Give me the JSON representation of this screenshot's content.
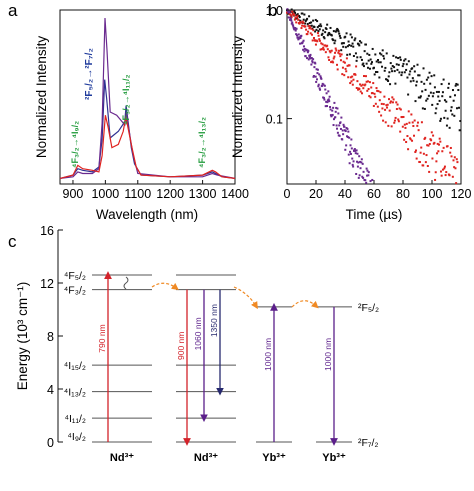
{
  "colors": {
    "axis": "#111111",
    "series_blue": "#2e3192",
    "series_purple": "#6a2a8f",
    "series_red": "#e0231f",
    "series_black": "#111111",
    "annot_blue": "#1f3b9c",
    "annot_green": "#1f9a3a",
    "arrow_red": "#d3222a",
    "arrow_purple": "#5b1f8a",
    "arrow_navy": "#27296e",
    "arrow_orange": "#f08a24",
    "level_line": "#555555"
  },
  "panel_labels": {
    "a": "a",
    "b": "b",
    "c": "c"
  },
  "chart_data": [
    {
      "panel": "a",
      "type": "line",
      "xlabel": "Wavelength (nm)",
      "ylabel": "Normalized Intensity",
      "xlim": [
        860,
        1400
      ],
      "xticks": [
        "900",
        "1000",
        "1100",
        "1200",
        "1300",
        "1400"
      ],
      "series": [
        {
          "color_key": "series_blue",
          "points": [
            [
              860,
              0.01
            ],
            [
              900,
              0.03
            ],
            [
              915,
              0.07
            ],
            [
              930,
              0.06
            ],
            [
              960,
              0.05
            ],
            [
              980,
              0.08
            ],
            [
              990,
              0.25
            ],
            [
              998,
              0.62
            ],
            [
              1004,
              0.5
            ],
            [
              1015,
              0.26
            ],
            [
              1040,
              0.3
            ],
            [
              1060,
              0.36
            ],
            [
              1064,
              0.46
            ],
            [
              1070,
              0.36
            ],
            [
              1080,
              0.2
            ],
            [
              1090,
              0.1
            ],
            [
              1110,
              0.03
            ],
            [
              1200,
              0.02
            ],
            [
              1300,
              0.03
            ],
            [
              1330,
              0.05
            ],
            [
              1340,
              0.04
            ],
            [
              1360,
              0.02
            ],
            [
              1400,
              0.01
            ]
          ]
        },
        {
          "color_key": "series_purple",
          "points": [
            [
              860,
              0.01
            ],
            [
              900,
              0.02
            ],
            [
              915,
              0.05
            ],
            [
              930,
              0.04
            ],
            [
              960,
              0.04
            ],
            [
              980,
              0.07
            ],
            [
              990,
              0.35
            ],
            [
              999,
              1.0
            ],
            [
              1005,
              0.8
            ],
            [
              1015,
              0.42
            ],
            [
              1035,
              0.4
            ],
            [
              1060,
              0.34
            ],
            [
              1065,
              0.42
            ],
            [
              1072,
              0.32
            ],
            [
              1085,
              0.16
            ],
            [
              1100,
              0.04
            ],
            [
              1200,
              0.02
            ],
            [
              1300,
              0.02
            ],
            [
              1330,
              0.04
            ],
            [
              1345,
              0.03
            ],
            [
              1400,
              0.01
            ]
          ]
        },
        {
          "color_key": "series_red",
          "points": [
            [
              860,
              0.01
            ],
            [
              900,
              0.03
            ],
            [
              915,
              0.09
            ],
            [
              930,
              0.07
            ],
            [
              960,
              0.06
            ],
            [
              980,
              0.05
            ],
            [
              990,
              0.15
            ],
            [
              1000,
              0.4
            ],
            [
              1008,
              0.33
            ],
            [
              1020,
              0.2
            ],
            [
              1040,
              0.22
            ],
            [
              1055,
              0.3
            ],
            [
              1063,
              0.39
            ],
            [
              1070,
              0.32
            ],
            [
              1080,
              0.22
            ],
            [
              1095,
              0.08
            ],
            [
              1110,
              0.03
            ],
            [
              1200,
              0.02
            ],
            [
              1300,
              0.03
            ],
            [
              1330,
              0.06
            ],
            [
              1340,
              0.05
            ],
            [
              1360,
              0.02
            ],
            [
              1400,
              0.01
            ]
          ]
        }
      ],
      "annotations": [
        {
          "text": "²F₅/₂→²F₇/₂",
          "color_key": "annot_blue"
        },
        {
          "text": "⁴F₃/₂→⁴I₁₁/₂",
          "color_key": "annot_green"
        },
        {
          "text": "⁴F₃/₂→⁴I₉/₂",
          "color_key": "annot_green"
        },
        {
          "text": "⁴F₃/₂→⁴I₁₃/₂",
          "color_key": "annot_green"
        }
      ]
    },
    {
      "panel": "b",
      "type": "scatter",
      "xlabel": "Time (µs)",
      "ylabel": "Normalized Intensity",
      "xlim": [
        0,
        120
      ],
      "ylim": [
        0.025,
        1.0
      ],
      "yscale": "log",
      "xticks": [
        "0",
        "20",
        "40",
        "60",
        "80",
        "100",
        "120"
      ],
      "yticks": [
        "1.0",
        "0.1"
      ],
      "series": [
        {
          "color_key": "series_black",
          "decay_tau_us": 60,
          "x_max": 120
        },
        {
          "color_key": "series_red",
          "decay_tau_us": 34,
          "x_max": 118
        },
        {
          "color_key": "series_purple",
          "decay_tau_us": 15,
          "x_max": 78
        }
      ]
    },
    {
      "panel": "c",
      "type": "diagram",
      "ylabel": "Energy (10³ cm⁻¹)",
      "ylim": [
        0,
        16
      ],
      "yticks": [
        "0",
        "4",
        "8",
        "12",
        "16"
      ],
      "groups": [
        {
          "label": "Nd³⁺",
          "levels": [
            0,
            1.8,
            3.8,
            5.8,
            11.5,
            12.6
          ]
        },
        {
          "label": "Nd³⁺",
          "levels": [
            0,
            1.8,
            3.8,
            5.8,
            11.5,
            12.6
          ]
        },
        {
          "label": "Yb³⁺",
          "levels": [
            0,
            10.2
          ]
        },
        {
          "label": "Yb³⁺",
          "levels": [
            0,
            10.2
          ]
        }
      ],
      "level_labels": [
        {
          "text": "⁴F₅/₂",
          "energy": 12.6
        },
        {
          "text": "⁴F₃/₂",
          "energy": 11.5
        },
        {
          "text": "⁴I₁₅/₂",
          "energy": 5.8
        },
        {
          "text": "⁴I₁₃/₂",
          "energy": 3.8
        },
        {
          "text": "⁴I₁₁/₂",
          "energy": 1.8
        },
        {
          "text": "⁴I₉/₂",
          "energy": 0
        }
      ],
      "yb_level_labels": [
        {
          "text": "²F₅/₂",
          "energy": 10.2
        },
        {
          "text": "²F₇/₂",
          "energy": 0
        }
      ],
      "transitions": [
        {
          "label": "790 nm",
          "group": 0,
          "from": 0,
          "to": 12.6,
          "dir": "up",
          "color_key": "arrow_red"
        },
        {
          "label": "900 nm",
          "group": 1,
          "from": 11.5,
          "to": 0,
          "dir": "down",
          "color_key": "arrow_red"
        },
        {
          "label": "1060 nm",
          "group": 1,
          "from": 11.5,
          "to": 1.8,
          "dir": "down",
          "color_key": "arrow_purple"
        },
        {
          "label": "1350 nm",
          "group": 1,
          "from": 11.5,
          "to": 3.8,
          "dir": "down",
          "color_key": "arrow_navy"
        },
        {
          "label": "1000 nm",
          "group": 2,
          "from": 0,
          "to": 10.2,
          "dir": "up",
          "color_key": "arrow_purple"
        },
        {
          "label": "1000 nm",
          "group": 3,
          "from": 10.2,
          "to": 0,
          "dir": "down",
          "color_key": "arrow_purple"
        }
      ]
    }
  ]
}
